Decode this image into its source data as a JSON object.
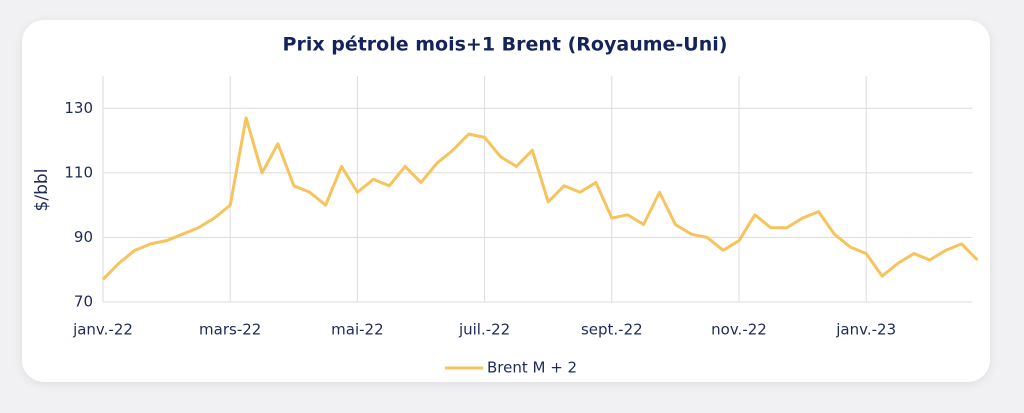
{
  "chart_data": {
    "type": "line",
    "title": "Prix pétrole mois+1 Brent (Royaume-Uni)",
    "y_label": "$/bbl",
    "categories": [
      "janv.-22",
      null,
      null,
      null,
      null,
      null,
      null,
      null,
      "mars-22",
      null,
      null,
      null,
      null,
      null,
      null,
      null,
      "mai-22",
      null,
      null,
      null,
      null,
      null,
      null,
      null,
      "juil.-22",
      null,
      null,
      null,
      null,
      null,
      null,
      null,
      "sept.-22",
      null,
      null,
      null,
      null,
      null,
      null,
      null,
      "nov.-22",
      null,
      null,
      null,
      null,
      null,
      null,
      null,
      "janv.-23",
      null,
      null,
      null,
      null,
      null,
      null,
      null
    ],
    "series": [
      {
        "name": "Brent M + 2",
        "color": "#f6c35c",
        "values": [
          77,
          82,
          86,
          88,
          89,
          91,
          93,
          96,
          100,
          127,
          110,
          119,
          106,
          104,
          100,
          112,
          104,
          108,
          106,
          112,
          107,
          113,
          117,
          122,
          121,
          115,
          112,
          117,
          101,
          106,
          104,
          107,
          96,
          97,
          94,
          104,
          94,
          91,
          90,
          86,
          89,
          97,
          93,
          93,
          96,
          98,
          91,
          87,
          85,
          78,
          82,
          85,
          83,
          86,
          88,
          83
        ]
      }
    ],
    "ylim": [
      70,
      140
    ],
    "yticks": [
      70,
      90,
      110,
      130
    ],
    "grid": true
  }
}
